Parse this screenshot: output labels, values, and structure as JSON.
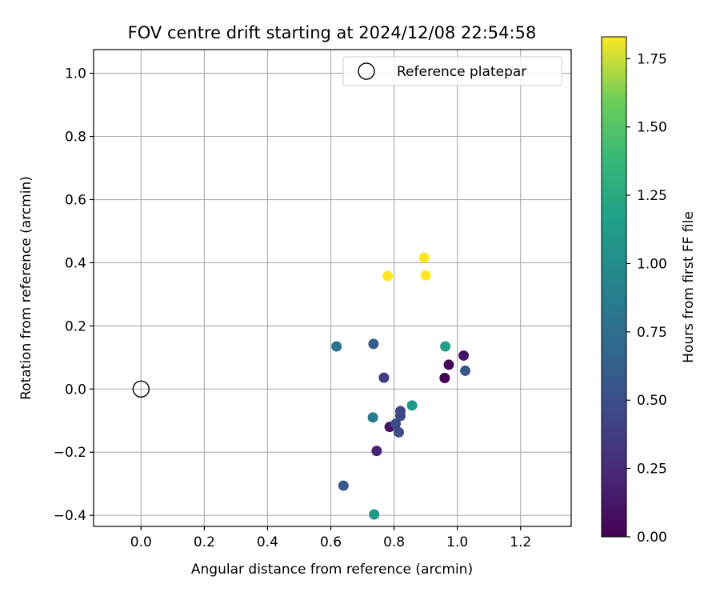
{
  "chart_data": {
    "type": "scatter",
    "title": "FOV centre drift starting at 2024/12/08 22:54:58",
    "xlabel": "Angular distance from reference (arcmin)",
    "ylabel": "Rotation from reference (arcmin)",
    "xlim": [
      -0.15,
      1.36
    ],
    "ylim": [
      -0.435,
      1.075
    ],
    "xticks": [
      0.0,
      0.2,
      0.4,
      0.6,
      0.8,
      1.0,
      1.2
    ],
    "yticks": [
      -0.4,
      -0.2,
      0.0,
      0.2,
      0.4,
      0.6,
      0.8,
      1.0
    ],
    "xtick_labels": [
      "0.0",
      "0.2",
      "0.4",
      "0.6",
      "0.8",
      "1.0",
      "1.2"
    ],
    "ytick_labels": [
      "−0.4",
      "−0.2",
      "0.0",
      "0.2",
      "0.4",
      "0.6",
      "0.8",
      "1.0"
    ],
    "grid": true,
    "legend": {
      "position": "top-right",
      "entries": [
        "Reference platepar"
      ]
    },
    "reference_point": {
      "x": 0.0,
      "y": 0.0,
      "label": "Reference platepar"
    },
    "colorbar": {
      "label": "Hours from first FF file",
      "min": 0.0,
      "max": 1.83,
      "colormap": "viridis",
      "ticks": [
        0.0,
        0.25,
        0.5,
        0.75,
        1.0,
        1.25,
        1.5,
        1.75
      ],
      "tick_labels": [
        "0.00",
        "0.25",
        "0.50",
        "0.75",
        "1.00",
        "1.25",
        "1.50",
        "1.75"
      ]
    },
    "points": [
      {
        "x": 0.96,
        "y": 0.035,
        "c": 0.0
      },
      {
        "x": 0.973,
        "y": 0.077,
        "c": 0.05
      },
      {
        "x": 1.02,
        "y": 0.106,
        "c": 0.12
      },
      {
        "x": 0.786,
        "y": -0.12,
        "c": 0.1
      },
      {
        "x": 0.745,
        "y": -0.196,
        "c": 0.2
      },
      {
        "x": 0.768,
        "y": 0.036,
        "c": 0.38
      },
      {
        "x": 0.82,
        "y": -0.07,
        "c": 0.42
      },
      {
        "x": 0.82,
        "y": -0.085,
        "c": 0.45
      },
      {
        "x": 0.805,
        "y": -0.11,
        "c": 0.48
      },
      {
        "x": 0.815,
        "y": -0.137,
        "c": 0.5
      },
      {
        "x": 1.025,
        "y": 0.058,
        "c": 0.55
      },
      {
        "x": 0.64,
        "y": -0.306,
        "c": 0.58
      },
      {
        "x": 0.735,
        "y": 0.143,
        "c": 0.6
      },
      {
        "x": 0.618,
        "y": 0.135,
        "c": 0.78
      },
      {
        "x": 0.733,
        "y": -0.09,
        "c": 0.85
      },
      {
        "x": 0.857,
        "y": -0.052,
        "c": 1.12
      },
      {
        "x": 0.962,
        "y": 0.135,
        "c": 1.15
      },
      {
        "x": 0.737,
        "y": -0.397,
        "c": 1.1
      },
      {
        "x": 0.78,
        "y": 0.358,
        "c": 1.83
      },
      {
        "x": 0.895,
        "y": 0.416,
        "c": 1.83
      },
      {
        "x": 0.9,
        "y": 0.36,
        "c": 1.83
      }
    ]
  }
}
